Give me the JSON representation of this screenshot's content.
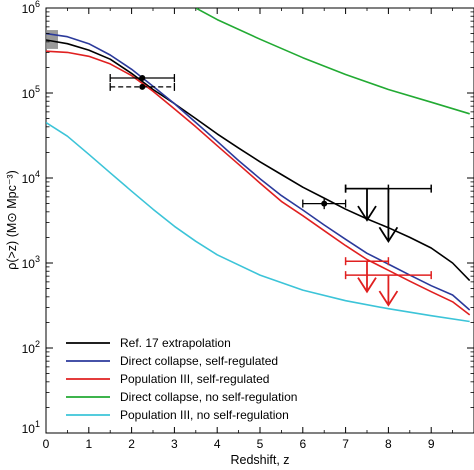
{
  "chart_data": {
    "type": "line",
    "title": "",
    "xlabel": "Redshift, z",
    "ylabel": "ρ(>z) (M⊙ Mpc⁻³)",
    "xlim": [
      0,
      10
    ],
    "ylim": [
      10,
      1000000
    ],
    "y_scale": "log",
    "x_ticks": [
      {
        "value": 0,
        "label": "0"
      },
      {
        "value": 1,
        "label": "1"
      },
      {
        "value": 2,
        "label": "2"
      },
      {
        "value": 3,
        "label": "3"
      },
      {
        "value": 4,
        "label": "4"
      },
      {
        "value": 5,
        "label": "5"
      },
      {
        "value": 6,
        "label": "6"
      },
      {
        "value": 7,
        "label": "7"
      },
      {
        "value": 8,
        "label": "8"
      },
      {
        "value": 9,
        "label": "9"
      }
    ],
    "y_ticks": [
      {
        "value": 10,
        "base": "10",
        "exp": "1"
      },
      {
        "value": 100,
        "base": "10",
        "exp": "2"
      },
      {
        "value": 1000,
        "base": "10",
        "exp": "3"
      },
      {
        "value": 10000,
        "base": "10",
        "exp": "4"
      },
      {
        "value": 100000,
        "base": "10",
        "exp": "5"
      },
      {
        "value": 1000000,
        "base": "10",
        "exp": "6"
      }
    ],
    "grid": false,
    "legend_position": "bottom-left",
    "series": [
      {
        "name": "Ref. 17 extrapolation",
        "color": "#000000",
        "x": [
          0,
          0.5,
          1,
          1.5,
          2,
          2.5,
          3,
          3.5,
          4,
          4.5,
          5,
          5.5,
          6,
          6.5,
          7,
          7.5,
          8,
          8.5,
          9,
          9.5,
          9.9
        ],
        "y": [
          420000,
          380000,
          320000,
          250000,
          170000,
          110000,
          75000,
          50000,
          33000,
          22500,
          15500,
          11000,
          7800,
          5800,
          4300,
          3300,
          2600,
          2000,
          1500,
          1000,
          620
        ]
      },
      {
        "name": "Direct collapse, self-regulated",
        "color": "#2b3a9b",
        "x": [
          0,
          0.5,
          1,
          1.5,
          2,
          2.5,
          3,
          3.5,
          4,
          4.5,
          5,
          5.5,
          6,
          6.5,
          7,
          7.5,
          8,
          8.5,
          9,
          9.5,
          9.9
        ],
        "y": [
          500000,
          460000,
          380000,
          280000,
          190000,
          120000,
          75000,
          45000,
          27000,
          16000,
          9800,
          6200,
          4200,
          2800,
          1900,
          1300,
          970,
          720,
          540,
          420,
          280
        ]
      },
      {
        "name": "Population III, self-regulated",
        "color": "#e02020",
        "x": [
          0,
          0.5,
          1,
          1.5,
          2,
          2.5,
          3,
          3.5,
          4,
          4.5,
          5,
          5.5,
          6,
          6.5,
          7,
          7.5,
          8,
          8.5,
          9,
          9.5,
          9.9
        ],
        "y": [
          310000,
          300000,
          270000,
          220000,
          160000,
          105000,
          65000,
          40000,
          24000,
          14500,
          8700,
          5300,
          3600,
          2400,
          1600,
          1100,
          820,
          610,
          460,
          350,
          245
        ]
      },
      {
        "name": "Direct collapse, no self-regulation",
        "color": "#22aa33",
        "x": [
          3.5,
          4,
          5,
          6,
          7,
          8,
          9,
          9.9
        ],
        "y": [
          1000000,
          730000,
          430000,
          260000,
          165000,
          110000,
          78000,
          57000
        ]
      },
      {
        "name": "Population III, no self-regulation",
        "color": "#3cc4d8",
        "x": [
          0,
          0.5,
          1,
          1.5,
          2,
          2.5,
          3,
          3.5,
          4,
          5,
          6,
          7,
          8,
          9,
          9.9
        ],
        "y": [
          45000,
          31000,
          19000,
          11500,
          7000,
          4300,
          2700,
          1800,
          1250,
          720,
          480,
          360,
          290,
          240,
          205
        ]
      }
    ],
    "data_points": [
      {
        "series": "black",
        "x": 2.25,
        "y": 150000,
        "xerr": [
          1.5,
          3.0
        ],
        "yerr": null,
        "style": "solid"
      },
      {
        "series": "black",
        "x": 2.25,
        "y": 118000,
        "xerr": [
          1.5,
          3.0
        ],
        "yerr": null,
        "style": "dashed"
      },
      {
        "series": "black",
        "x": 6.5,
        "y": 5000,
        "xerr": [
          6.0,
          7.0
        ],
        "yerr": [
          4300,
          5700
        ],
        "style": "solid"
      }
    ],
    "upper_limits": [
      {
        "color": "#000000",
        "x": 7.5,
        "y": 7500,
        "xerr": [
          7.0,
          8.0
        ],
        "arrow_to": 3200
      },
      {
        "color": "#000000",
        "x": 8.0,
        "y": 7500,
        "xerr": [
          7.0,
          9.0
        ],
        "arrow_to": 1800
      },
      {
        "color": "#e02020",
        "x": 7.5,
        "y": 1050,
        "xerr": [
          7.0,
          8.0
        ],
        "arrow_to": 460
      },
      {
        "color": "#e02020",
        "x": 8.0,
        "y": 720,
        "xerr": [
          7.0,
          9.0
        ],
        "arrow_to": 320
      }
    ],
    "local_box": {
      "x": [
        0,
        0.28
      ],
      "y": [
        330000,
        550000
      ],
      "color": "#888888"
    }
  }
}
